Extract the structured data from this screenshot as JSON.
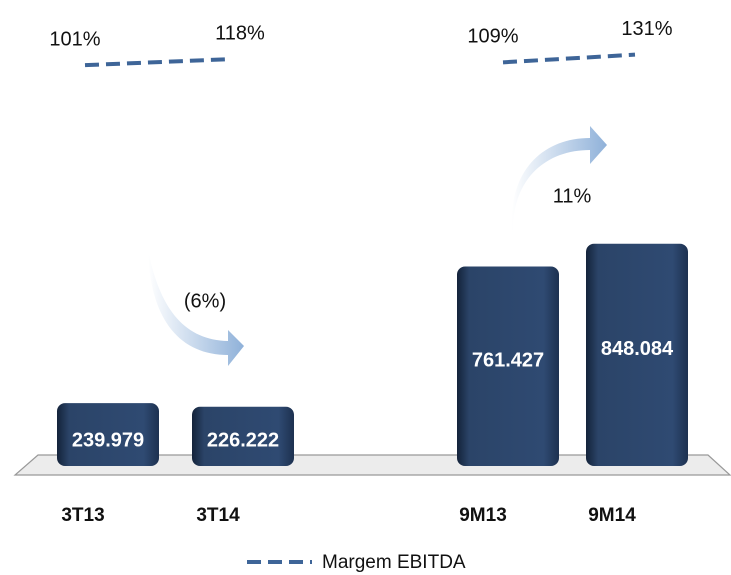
{
  "chart_data": {
    "type": "bar",
    "categories": [
      "3T13",
      "3T14",
      "9M13",
      "9M14"
    ],
    "values": [
      239979,
      226222,
      761427,
      848084
    ],
    "value_labels": [
      "239.979",
      "226.222",
      "761.427",
      "848.084"
    ],
    "color": "#2b4468",
    "line_series": {
      "name": "Margem EBITDA",
      "color": "#3e6598",
      "values": [
        101,
        118,
        109,
        131
      ],
      "value_labels": [
        "101%",
        "118%",
        "109%",
        "131%"
      ]
    },
    "annotations": [
      {
        "text": "(6%)"
      },
      {
        "text": "11%"
      }
    ]
  }
}
